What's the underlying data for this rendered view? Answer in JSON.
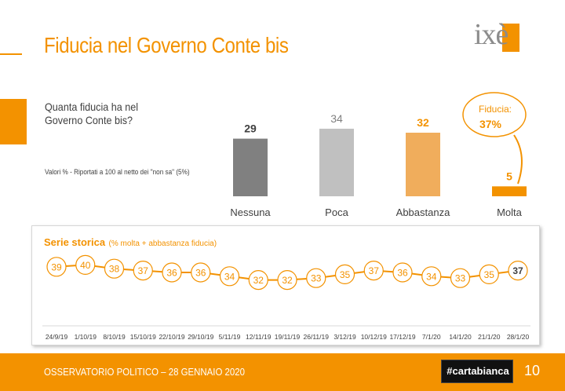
{
  "header": {
    "title": "Fiducia nel Governo Conte bis",
    "logo_text": "ixè"
  },
  "question": "Quanta fiducia ha nel Governo Conte bis?",
  "note": "Valori % - Riportati a 100 al netto dei \"non sa\" (5%)",
  "callout": {
    "label": "Fiducia:",
    "value": "37%"
  },
  "series_panel": {
    "title": "Serie storica",
    "subtitle": "(% molta + abbastanza fiducia)"
  },
  "footer": {
    "text": "OSSERVATORIO POLITICO – 28 GENNAIO 2020",
    "badge": "#cartabianca",
    "page": "10"
  },
  "colors": {
    "accent": "#f39200",
    "nessuna": "#808080",
    "poca": "#c0c0c0",
    "abbastanza": "#f0ad5c",
    "molta": "#f39200"
  },
  "chart_data": [
    {
      "type": "bar",
      "categories": [
        "Nessuna",
        "Poca",
        "Abbastanza",
        "Molta"
      ],
      "values": [
        29,
        34,
        32,
        5
      ],
      "ylim": [
        0,
        40
      ]
    },
    {
      "type": "line",
      "x": [
        "24/9/19",
        "1/10/19",
        "8/10/19",
        "15/10/19",
        "22/10/19",
        "29/10/19",
        "5/11/19",
        "12/11/19",
        "19/11/19",
        "26/11/19",
        "3/12/19",
        "10/12/19",
        "17/12/19",
        "7/1/20",
        "14/1/20",
        "21/1/20",
        "28/1/20"
      ],
      "values": [
        39,
        40,
        38,
        37,
        36,
        36,
        34,
        32,
        32,
        33,
        35,
        37,
        36,
        34,
        33,
        35,
        37
      ],
      "ylim": [
        28,
        44
      ]
    }
  ]
}
